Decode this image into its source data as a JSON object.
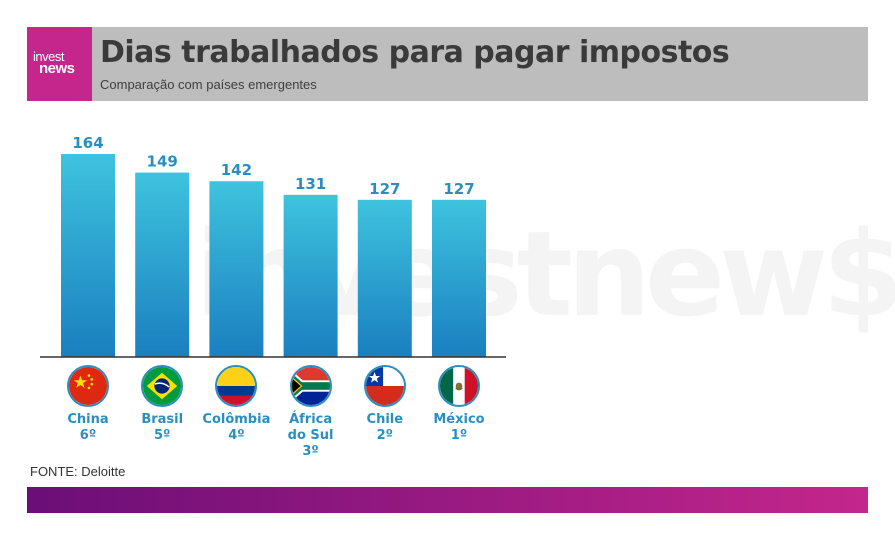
{
  "header": {
    "logo_line1": "invest",
    "logo_line2": "news",
    "title": "Dias trabalhados para pagar impostos",
    "subtitle": "Comparação com países emergentes"
  },
  "watermark": "investnews",
  "source": "FONTE: Deloitte",
  "colors": {
    "header_bg": "#bdbdbd",
    "brand": "#c4268c",
    "bar_top": "#3ec3de",
    "bar_bottom": "#1a7fc0",
    "label": "#2a8fbf",
    "footer_start": "#6b0e77",
    "footer_end": "#c4268c"
  },
  "chart_data": {
    "type": "bar",
    "categories": [
      "China",
      "Brasil",
      "Colômbia",
      "África do Sul",
      "Chile",
      "México"
    ],
    "category_labels": [
      "China\n6º",
      "Brasil\n5º",
      "Colômbia\n4º",
      "África\ndo Sul\n3º",
      "Chile\n2º",
      "México\n1º"
    ],
    "flags": [
      "china-flag-icon",
      "brazil-flag-icon",
      "colombia-flag-icon",
      "south-africa-flag-icon",
      "chile-flag-icon",
      "mexico-flag-icon"
    ],
    "values": [
      164,
      149,
      142,
      131,
      127,
      127
    ],
    "title": "Dias trabalhados para pagar impostos",
    "xlabel": "",
    "ylabel": "",
    "grid": false
  }
}
